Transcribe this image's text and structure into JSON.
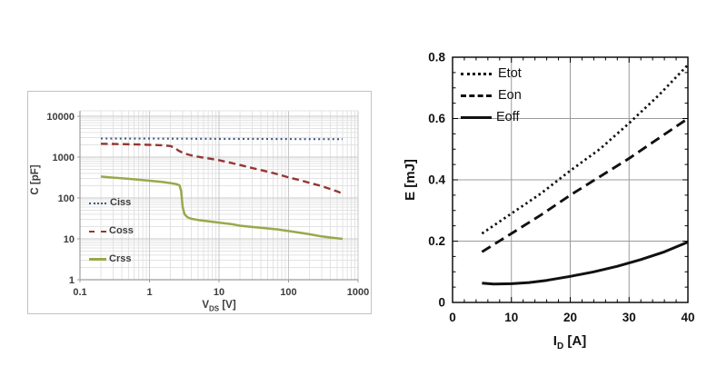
{
  "page": {
    "background": "#ffffff"
  },
  "chart_data": [
    {
      "id": "capacitance-vs-vds",
      "type": "line",
      "title": "",
      "xlabel": "V_DS [V]",
      "xlabel_parts": {
        "pre": "V",
        "sub": "DS",
        "post": " [V]"
      },
      "ylabel": "C [pF]",
      "x_scale": "log",
      "y_scale": "log",
      "xlim": [
        0.1,
        1000
      ],
      "ylim": [
        1,
        10000
      ],
      "x_ticks": [
        {
          "v": 0.1,
          "label": "0.1"
        },
        {
          "v": 1,
          "label": "1"
        },
        {
          "v": 10,
          "label": "10"
        },
        {
          "v": 100,
          "label": "100"
        },
        {
          "v": 1000,
          "label": "1000"
        }
      ],
      "y_ticks": [
        {
          "v": 10000,
          "label": "10000"
        },
        {
          "v": 1000,
          "label": "1000"
        },
        {
          "v": 100,
          "label": "100"
        },
        {
          "v": 10,
          "label": "10"
        },
        {
          "v": 1,
          "label": "1"
        }
      ],
      "grid": "log major+minor, light gray, on",
      "legend_position": "inside-left",
      "colors": {
        "text": "#3c3c3c",
        "grid_minor": "#e3e3e3",
        "grid_major": "#c7c7c7",
        "axis": "#9c9c9c",
        "frame": "#c2c2c2"
      },
      "series": [
        {
          "name": "Ciss",
          "style": "dotted",
          "color": "#3f5c7d",
          "points": [
            [
              0.2,
              2850
            ],
            [
              1,
              2840
            ],
            [
              3,
              2820
            ],
            [
              10,
              2800
            ],
            [
              50,
              2780
            ],
            [
              200,
              2760
            ],
            [
              600,
              2750
            ]
          ]
        },
        {
          "name": "Coss",
          "style": "dashed",
          "color": "#943634",
          "points": [
            [
              0.2,
              2120
            ],
            [
              0.4,
              2080
            ],
            [
              0.7,
              2040
            ],
            [
              1,
              2000
            ],
            [
              1.5,
              1950
            ],
            [
              2,
              1870
            ],
            [
              2.3,
              1700
            ],
            [
              2.6,
              1450
            ],
            [
              3,
              1280
            ],
            [
              3.5,
              1170
            ],
            [
              4,
              1100
            ],
            [
              5,
              1020
            ],
            [
              7,
              930
            ],
            [
              10,
              840
            ],
            [
              15,
              720
            ],
            [
              20,
              640
            ],
            [
              30,
              540
            ],
            [
              50,
              440
            ],
            [
              70,
              380
            ],
            [
              100,
              320
            ],
            [
              150,
              270
            ],
            [
              200,
              235
            ],
            [
              300,
              195
            ],
            [
              400,
              165
            ],
            [
              500,
              145
            ],
            [
              600,
              128
            ]
          ]
        },
        {
          "name": "Crss",
          "style": "solid",
          "color": "#9aa84a",
          "points": [
            [
              0.2,
              335
            ],
            [
              0.3,
              315
            ],
            [
              0.5,
              295
            ],
            [
              0.7,
              280
            ],
            [
              1,
              265
            ],
            [
              1.5,
              247
            ],
            [
              2,
              232
            ],
            [
              2.4,
              220
            ],
            [
              2.7,
              205
            ],
            [
              2.85,
              150
            ],
            [
              3,
              60
            ],
            [
              3.2,
              40
            ],
            [
              3.5,
              34
            ],
            [
              4,
              31
            ],
            [
              5,
              29
            ],
            [
              7,
              27
            ],
            [
              10,
              25
            ],
            [
              15,
              23
            ],
            [
              20,
              21
            ],
            [
              30,
              19.5
            ],
            [
              50,
              18
            ],
            [
              70,
              17
            ],
            [
              100,
              15.5
            ],
            [
              150,
              14
            ],
            [
              200,
              13
            ],
            [
              300,
              11.5
            ],
            [
              400,
              10.8
            ],
            [
              500,
              10.3
            ],
            [
              600,
              10
            ]
          ]
        }
      ]
    },
    {
      "id": "switching-energy-vs-id",
      "type": "line",
      "title": "",
      "xlabel": "I_D [A]",
      "xlabel_parts": {
        "pre": "I",
        "sub": "D",
        "post": " [A]"
      },
      "ylabel": "E [mJ]",
      "x_scale": "linear",
      "y_scale": "linear",
      "xlim": [
        0,
        40
      ],
      "ylim": [
        0,
        0.8
      ],
      "x_ticks": [
        {
          "v": 0,
          "label": "0"
        },
        {
          "v": 10,
          "label": "10"
        },
        {
          "v": 20,
          "label": "20"
        },
        {
          "v": 30,
          "label": "30"
        },
        {
          "v": 40,
          "label": "40"
        }
      ],
      "y_ticks": [
        {
          "v": 0,
          "label": "0"
        },
        {
          "v": 0.2,
          "label": "0.2"
        },
        {
          "v": 0.4,
          "label": "0.4"
        },
        {
          "v": 0.6,
          "label": "0.6"
        },
        {
          "v": 0.8,
          "label": "0.8"
        }
      ],
      "x_minor_step": 2,
      "y_minor_step": 0.05,
      "grid_x": [
        10,
        20,
        30
      ],
      "grid_y": [
        0.2,
        0.4,
        0.6
      ],
      "grid": "major only, gray, on",
      "legend_position": "inside-top-left",
      "colors": {
        "text": "#111111",
        "grid_major": "#9b9b9b",
        "frame": "#000000",
        "line": "#111111"
      },
      "series": [
        {
          "name": "Etot",
          "style": "dotted",
          "color": "#111111",
          "points": [
            [
              5,
              0.225
            ],
            [
              10,
              0.29
            ],
            [
              15,
              0.355
            ],
            [
              20,
              0.43
            ],
            [
              25,
              0.5
            ],
            [
              30,
              0.585
            ],
            [
              35,
              0.675
            ],
            [
              40,
              0.775
            ]
          ]
        },
        {
          "name": "Eon",
          "style": "dashed",
          "color": "#111111",
          "points": [
            [
              5,
              0.165
            ],
            [
              10,
              0.225
            ],
            [
              15,
              0.285
            ],
            [
              20,
              0.35
            ],
            [
              25,
              0.41
            ],
            [
              30,
              0.47
            ],
            [
              35,
              0.535
            ],
            [
              40,
              0.6
            ]
          ]
        },
        {
          "name": "Eoff",
          "style": "solid",
          "color": "#111111",
          "points": [
            [
              5,
              0.063
            ],
            [
              7,
              0.06
            ],
            [
              10,
              0.061
            ],
            [
              13,
              0.065
            ],
            [
              16,
              0.072
            ],
            [
              20,
              0.085
            ],
            [
              24,
              0.1
            ],
            [
              28,
              0.118
            ],
            [
              32,
              0.14
            ],
            [
              36,
              0.165
            ],
            [
              40,
              0.197
            ]
          ]
        }
      ]
    }
  ]
}
